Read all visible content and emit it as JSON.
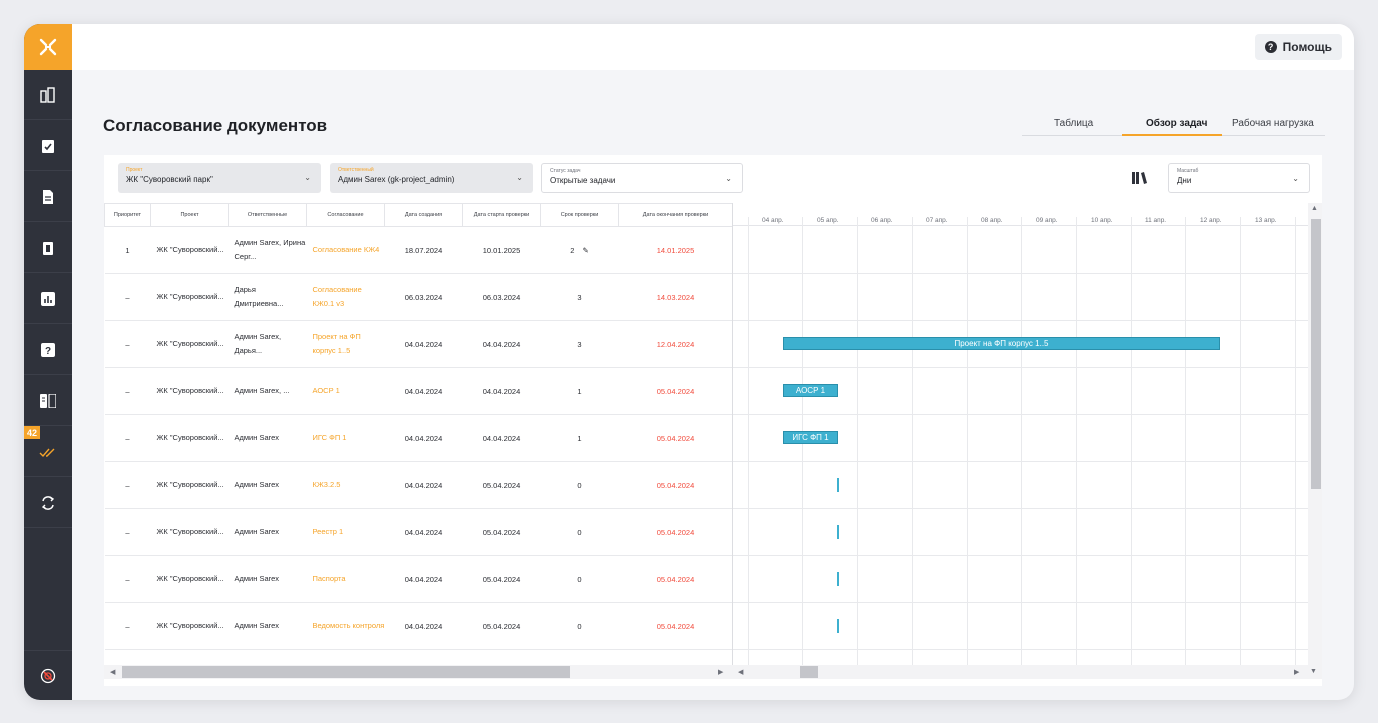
{
  "help": {
    "label": "Помощь",
    "icon": "help-icon"
  },
  "page": {
    "title": "Согласование документов"
  },
  "view_tabs": [
    {
      "label": "Таблица",
      "active": false
    },
    {
      "label": "Обзор задач",
      "active": true
    },
    {
      "label": "Рабочая нагрузка",
      "active": false
    }
  ],
  "sidebar": {
    "logo_icon": "logo-icon",
    "items": [
      {
        "icon": "buildings-icon"
      },
      {
        "icon": "clipboard-check-icon"
      },
      {
        "icon": "document-icon"
      },
      {
        "icon": "clipboard-icon"
      },
      {
        "icon": "chart-icon"
      },
      {
        "icon": "question-icon"
      },
      {
        "icon": "book-icon"
      },
      {
        "icon": "double-check-icon"
      },
      {
        "icon": "sync-icon"
      }
    ],
    "badge": "42",
    "bottom_icon": "logout-icon"
  },
  "filters": {
    "project": {
      "label": "Проект",
      "value": "ЖК \"Суворовский парк\""
    },
    "responsible": {
      "label": "Ответственный",
      "value": "Админ Sarex (gk-project_admin)"
    },
    "status": {
      "label": "Статус задач",
      "value": "Открытые задачи"
    },
    "scale": {
      "label": "Масштаб",
      "value": "Дни"
    }
  },
  "table": {
    "columns": [
      "Приоритет",
      "Проект",
      "Ответственные",
      "Согласование",
      "Дата создания",
      "Дата старта проверки",
      "Срок проверки",
      "Дата окончания проверки"
    ],
    "rows": [
      {
        "priority": "1",
        "project": "ЖК \"Суворовский...",
        "resp": "Админ Sarex, Ирина Серг...",
        "approval": "Согласование КЖ4",
        "created": "18.07.2024",
        "start": "10.01.2025",
        "term": "2",
        "end": "14.01.2025"
      },
      {
        "priority": "–",
        "project": "ЖК \"Суворовский...",
        "resp": "Дарья Дмитриевна...",
        "approval": "Согласование КЖ0.1 v3",
        "created": "06.03.2024",
        "start": "06.03.2024",
        "term": "3",
        "end": "14.03.2024"
      },
      {
        "priority": "–",
        "project": "ЖК \"Суворовский...",
        "resp": "Админ Sarex, Дарья...",
        "approval": "Проект на ФП корпус 1..5",
        "created": "04.04.2024",
        "start": "04.04.2024",
        "term": "3",
        "end": "12.04.2024"
      },
      {
        "priority": "–",
        "project": "ЖК \"Суворовский...",
        "resp": "Админ Sarex, ...",
        "approval": "АОСР 1",
        "created": "04.04.2024",
        "start": "04.04.2024",
        "term": "1",
        "end": "05.04.2024"
      },
      {
        "priority": "–",
        "project": "ЖК \"Суворовский...",
        "resp": "Админ Sarex",
        "approval": "ИГС ФП 1",
        "created": "04.04.2024",
        "start": "04.04.2024",
        "term": "1",
        "end": "05.04.2024"
      },
      {
        "priority": "–",
        "project": "ЖК \"Суворовский...",
        "resp": "Админ Sarex",
        "approval": "КЖ3.2.5",
        "created": "04.04.2024",
        "start": "05.04.2024",
        "term": "0",
        "end": "05.04.2024"
      },
      {
        "priority": "–",
        "project": "ЖК \"Суворовский...",
        "resp": "Админ Sarex",
        "approval": "Реестр 1",
        "created": "04.04.2024",
        "start": "05.04.2024",
        "term": "0",
        "end": "05.04.2024"
      },
      {
        "priority": "–",
        "project": "ЖК \"Суворовский...",
        "resp": "Админ Sarex",
        "approval": "Паспорта",
        "created": "04.04.2024",
        "start": "05.04.2024",
        "term": "0",
        "end": "05.04.2024"
      },
      {
        "priority": "–",
        "project": "ЖК \"Суворовский...",
        "resp": "Админ Sarex",
        "approval": "Ведомость контроля",
        "created": "04.04.2024",
        "start": "05.04.2024",
        "term": "0",
        "end": "05.04.2024"
      }
    ]
  },
  "gantt": {
    "days": [
      "04 апр.",
      "05 апр.",
      "06 апр.",
      "07 апр.",
      "08 апр.",
      "09 апр.",
      "10 апр.",
      "11 апр.",
      "12 апр.",
      "13 апр."
    ],
    "bars": [
      {
        "row": 2,
        "label": "Проект на ФП корпус 1..5"
      },
      {
        "row": 3,
        "label": "АОСР 1"
      },
      {
        "row": 4,
        "label": "ИГС ФП 1"
      }
    ]
  },
  "colors": {
    "accent": "#f5a42a",
    "overdue": "#f14b3c",
    "bar": "#3db0cf",
    "sidebar": "#2f323b"
  }
}
